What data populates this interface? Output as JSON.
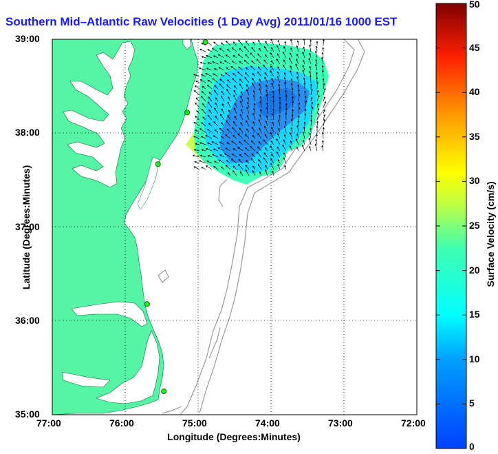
{
  "title": "Southern Mid–Atlantic Raw Velocities (1 Day Avg) 2011/01/16 1000 EST",
  "map": {
    "xlabel": "Longitude (Degrees:Minutes)",
    "ylabel": "Latitude (Degrees:Minutes)",
    "lon_range": [
      -77,
      -72
    ],
    "lat_range": [
      35,
      39
    ],
    "x_ticks": [
      {
        "value": -77,
        "label": "77:00"
      },
      {
        "value": -76,
        "label": "76:00"
      },
      {
        "value": -75,
        "label": "75:00"
      },
      {
        "value": -74,
        "label": "74:00"
      },
      {
        "value": -73,
        "label": "73:00"
      },
      {
        "value": -72,
        "label": "72:00"
      }
    ],
    "y_ticks": [
      {
        "value": 35,
        "label": "35:00"
      },
      {
        "value": 36,
        "label": "36:00"
      },
      {
        "value": 37,
        "label": "37:00"
      },
      {
        "value": 38,
        "label": "38:00"
      },
      {
        "value": 39,
        "label": "39:00"
      }
    ],
    "grid": "dotted",
    "land_color": "#55f5a5",
    "water_color": "#ffffff",
    "stations": [
      {
        "lon": -74.9,
        "lat": 38.97
      },
      {
        "lon": -75.15,
        "lat": 38.22
      },
      {
        "lon": -75.55,
        "lat": 37.67
      },
      {
        "lon": -75.7,
        "lat": 36.18
      },
      {
        "lon": -75.47,
        "lat": 35.25
      }
    ]
  },
  "colorbar": {
    "label": "Surface Velocity (cm/s)",
    "range": [
      0,
      50
    ],
    "ticks": [
      0,
      5,
      10,
      15,
      20,
      25,
      30,
      35,
      40,
      45,
      50
    ],
    "tick_labels": [
      "0",
      "5",
      "10",
      "15",
      "20",
      "25",
      "30",
      "35",
      "40",
      "45",
      "50"
    ],
    "colormap": "jet"
  }
}
